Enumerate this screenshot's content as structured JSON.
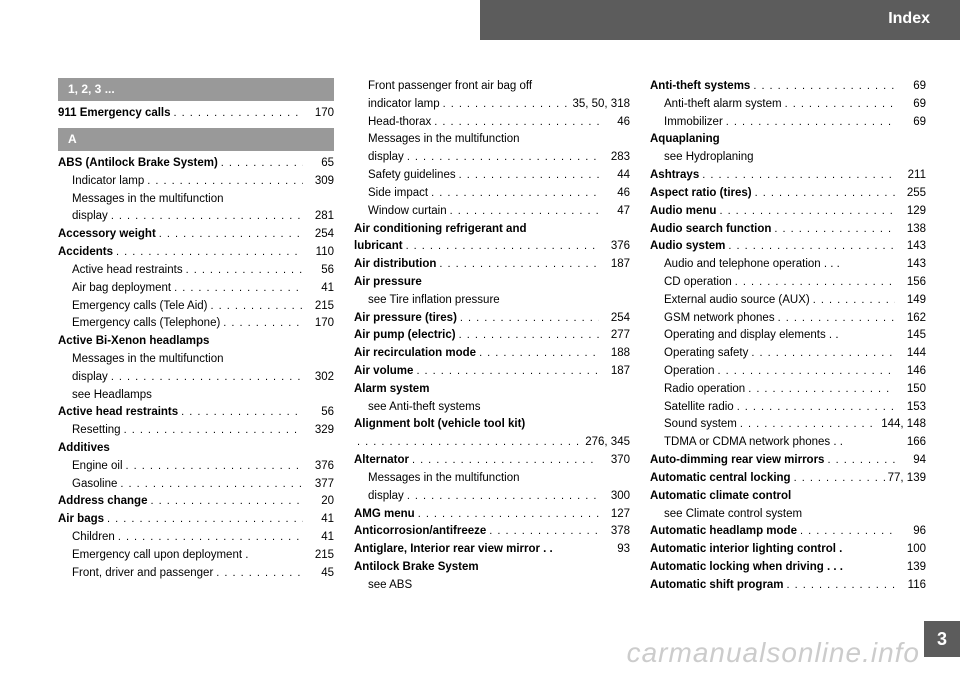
{
  "header": {
    "title": "Index"
  },
  "page_number": "3",
  "watermark": "carmanualsonline.info",
  "sections": {
    "num": "1, 2, 3 ...",
    "a": "A"
  },
  "col1": [
    {
      "type": "head",
      "key": "sections.num"
    },
    {
      "bold": true,
      "label": "911 Emergency calls",
      "page": "170"
    },
    {
      "type": "spacer"
    },
    {
      "type": "head",
      "key": "sections.a"
    },
    {
      "bold": true,
      "label": "ABS (Antilock Brake System)",
      "page": "65"
    },
    {
      "sub": true,
      "label": "Indicator lamp",
      "page": "309"
    },
    {
      "sub": true,
      "label": "Messages in the multifunction",
      "nopage": true
    },
    {
      "sub": true,
      "label": "display",
      "page": "281"
    },
    {
      "bold": true,
      "label": "Accessory weight",
      "page": "254"
    },
    {
      "bold": true,
      "label": "Accidents",
      "page": "110"
    },
    {
      "sub": true,
      "label": "Active head restraints",
      "page": "56"
    },
    {
      "sub": true,
      "label": "Air bag deployment",
      "page": "41"
    },
    {
      "sub": true,
      "label": "Emergency calls (Tele Aid)",
      "page": "215"
    },
    {
      "sub": true,
      "label": "Emergency calls (Telephone)",
      "page": "170"
    },
    {
      "bold": true,
      "label": "Active Bi-Xenon headlamps",
      "nopage": true
    },
    {
      "sub": true,
      "label": "Messages in the multifunction",
      "nopage": true
    },
    {
      "sub": true,
      "label": "display",
      "page": "302"
    },
    {
      "sub": true,
      "label": "see Headlamps",
      "nopage": true,
      "nodots": true
    },
    {
      "bold": true,
      "label": "Active head restraints",
      "page": "56"
    },
    {
      "sub": true,
      "label": "Resetting",
      "page": "329"
    },
    {
      "bold": true,
      "label": "Additives",
      "nopage": true,
      "nodots": true
    },
    {
      "sub": true,
      "label": "Engine oil",
      "page": "376"
    },
    {
      "sub": true,
      "label": "Gasoline",
      "page": "377"
    },
    {
      "bold": true,
      "label": "Address change",
      "page": "20"
    },
    {
      "bold": true,
      "label": "Air bags",
      "page": "41"
    },
    {
      "sub": true,
      "label": "Children",
      "page": "41"
    },
    {
      "sub": true,
      "label": "Emergency call upon deployment .",
      "page": "215",
      "nodots": true
    },
    {
      "sub": true,
      "label": "Front, driver and passenger",
      "page": "45"
    }
  ],
  "col2": [
    {
      "sub": true,
      "label": "Front passenger front air bag off",
      "nopage": true,
      "nodots": true
    },
    {
      "sub": true,
      "label": "indicator lamp",
      "page": "35, 50, 318"
    },
    {
      "sub": true,
      "label": "Head-thorax",
      "page": "46"
    },
    {
      "sub": true,
      "label": "Messages in the multifunction",
      "nopage": true,
      "nodots": true
    },
    {
      "sub": true,
      "label": "display",
      "page": "283"
    },
    {
      "sub": true,
      "label": "Safety guidelines",
      "page": "44"
    },
    {
      "sub": true,
      "label": "Side impact",
      "page": "46"
    },
    {
      "sub": true,
      "label": "Window curtain",
      "page": "47"
    },
    {
      "bold": true,
      "label": "Air conditioning refrigerant and",
      "nopage": true,
      "nodots": true
    },
    {
      "bold": true,
      "label": "lubricant",
      "page": "376"
    },
    {
      "bold": true,
      "label": "Air distribution",
      "page": "187"
    },
    {
      "bold": true,
      "label": "Air pressure",
      "nopage": true,
      "nodots": true
    },
    {
      "sub": true,
      "label": "see Tire inflation pressure",
      "nopage": true,
      "nodots": true
    },
    {
      "bold": true,
      "label": "Air pressure (tires)",
      "page": "254"
    },
    {
      "bold": true,
      "label": "Air pump (electric)",
      "page": "277"
    },
    {
      "bold": true,
      "label": "Air recirculation mode",
      "page": "188"
    },
    {
      "bold": true,
      "label": "Air volume",
      "page": "187"
    },
    {
      "bold": true,
      "label": "Alarm system",
      "nopage": true,
      "nodots": true
    },
    {
      "sub": true,
      "label": "see Anti-theft systems",
      "nopage": true,
      "nodots": true
    },
    {
      "bold": true,
      "label": "Alignment bolt (vehicle tool kit)",
      "nopage": true,
      "nodots": true
    },
    {
      "sub": false,
      "label": "",
      "page": "276, 345"
    },
    {
      "bold": true,
      "label": "Alternator",
      "page": "370"
    },
    {
      "sub": true,
      "label": "Messages in the multifunction",
      "nopage": true,
      "nodots": true
    },
    {
      "sub": true,
      "label": "display",
      "page": "300"
    },
    {
      "bold": true,
      "label": "AMG menu",
      "page": "127"
    },
    {
      "bold": true,
      "label": "Anticorrosion/antifreeze",
      "page": "378"
    },
    {
      "bold": true,
      "label": "Antiglare, Interior rear view mirror . .",
      "page": "93",
      "nodots": true
    },
    {
      "bold": true,
      "label": "Antilock Brake System",
      "nopage": true,
      "nodots": true
    },
    {
      "sub": true,
      "label": "see ABS",
      "nopage": true,
      "nodots": true
    }
  ],
  "col3": [
    {
      "bold": true,
      "label": "Anti-theft systems",
      "page": "69"
    },
    {
      "sub": true,
      "label": "Anti-theft alarm system",
      "page": "69"
    },
    {
      "sub": true,
      "label": "Immobilizer",
      "page": "69"
    },
    {
      "bold": true,
      "label": "Aquaplaning",
      "nopage": true,
      "nodots": true
    },
    {
      "sub": true,
      "label": "see Hydroplaning",
      "nopage": true,
      "nodots": true
    },
    {
      "bold": true,
      "label": "Ashtrays",
      "page": "211"
    },
    {
      "bold": true,
      "label": "Aspect ratio (tires)",
      "page": "255"
    },
    {
      "bold": true,
      "label": "Audio menu",
      "page": "129"
    },
    {
      "bold": true,
      "label": "Audio search function",
      "page": "138"
    },
    {
      "bold": true,
      "label": "Audio system",
      "page": "143"
    },
    {
      "sub": true,
      "label": "Audio and telephone operation . . .",
      "page": "143",
      "nodots": true
    },
    {
      "sub": true,
      "label": "CD operation",
      "page": "156"
    },
    {
      "sub": true,
      "label": "External audio source (AUX)",
      "page": "149"
    },
    {
      "sub": true,
      "label": "GSM network phones",
      "page": "162"
    },
    {
      "sub": true,
      "label": "Operating and display elements  . .",
      "page": "145",
      "nodots": true
    },
    {
      "sub": true,
      "label": "Operating safety",
      "page": "144"
    },
    {
      "sub": true,
      "label": "Operation",
      "page": "146"
    },
    {
      "sub": true,
      "label": "Radio operation",
      "page": "150"
    },
    {
      "sub": true,
      "label": "Satellite radio",
      "page": "153"
    },
    {
      "sub": true,
      "label": "Sound system",
      "page": "144, 148"
    },
    {
      "sub": true,
      "label": "TDMA or CDMA network phones . .",
      "page": "166",
      "nodots": true
    },
    {
      "bold": true,
      "label": "Auto-dimming rear view mirrors",
      "page": "94"
    },
    {
      "bold": true,
      "label": "Automatic central locking",
      "page": "77, 139"
    },
    {
      "bold": true,
      "label": "Automatic climate control",
      "nopage": true,
      "nodots": true
    },
    {
      "sub": true,
      "label": "see Climate control system",
      "nopage": true,
      "nodots": true
    },
    {
      "bold": true,
      "label": "Automatic headlamp mode",
      "page": "96"
    },
    {
      "bold": true,
      "label": "Automatic interior lighting control .",
      "page": "100",
      "nodots": true
    },
    {
      "bold": true,
      "label": "Automatic locking when driving . . .",
      "page": "139",
      "nodots": true
    },
    {
      "bold": true,
      "label": "Automatic shift program",
      "page": "116"
    }
  ]
}
